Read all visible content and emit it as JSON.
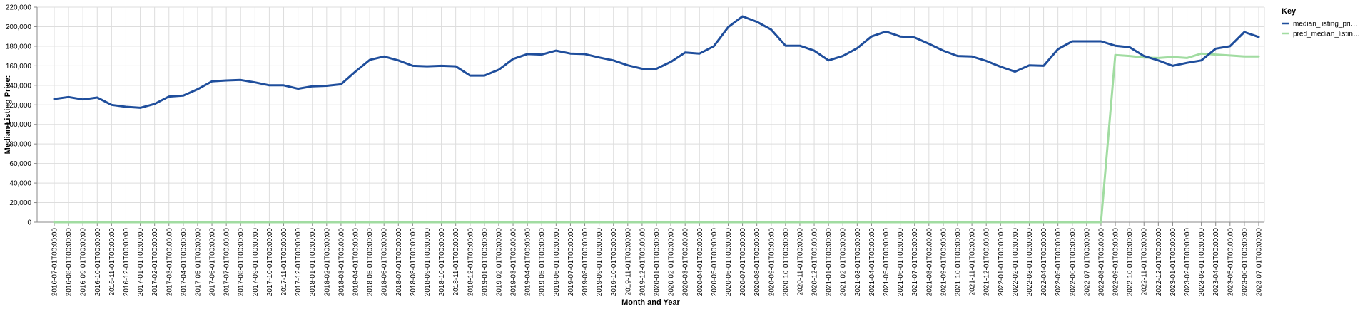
{
  "chart_data": {
    "type": "line",
    "xlabel": "Month and Year",
    "ylabel": "Median Listing Price:",
    "ylim": [
      0,
      220000
    ],
    "yticks": [
      "0",
      "20,000",
      "40,000",
      "60,000",
      "80,000",
      "100,000",
      "120,000",
      "140,000",
      "160,000",
      "180,000",
      "200,000",
      "220,000"
    ],
    "grid": true,
    "legend": {
      "title": "Key",
      "placement": "top-right"
    },
    "x": [
      "2016-07-01T00:00:00",
      "2016-08-01T00:00:00",
      "2016-09-01T00:00:00",
      "2016-10-01T00:00:00",
      "2016-11-01T00:00:00",
      "2016-12-01T00:00:00",
      "2017-01-01T00:00:00",
      "2017-02-01T00:00:00",
      "2017-03-01T00:00:00",
      "2017-04-01T00:00:00",
      "2017-05-01T00:00:00",
      "2017-06-01T00:00:00",
      "2017-07-01T00:00:00",
      "2017-08-01T00:00:00",
      "2017-09-01T00:00:00",
      "2017-10-01T00:00:00",
      "2017-11-01T00:00:00",
      "2017-12-01T00:00:00",
      "2018-01-01T00:00:00",
      "2018-02-01T00:00:00",
      "2018-03-01T00:00:00",
      "2018-04-01T00:00:00",
      "2018-05-01T00:00:00",
      "2018-06-01T00:00:00",
      "2018-07-01T00:00:00",
      "2018-08-01T00:00:00",
      "2018-09-01T00:00:00",
      "2018-10-01T00:00:00",
      "2018-11-01T00:00:00",
      "2018-12-01T00:00:00",
      "2019-01-01T00:00:00",
      "2019-02-01T00:00:00",
      "2019-03-01T00:00:00",
      "2019-04-01T00:00:00",
      "2019-05-01T00:00:00",
      "2019-06-01T00:00:00",
      "2019-07-01T00:00:00",
      "2019-08-01T00:00:00",
      "2019-09-01T00:00:00",
      "2019-10-01T00:00:00",
      "2019-11-01T00:00:00",
      "2019-12-01T00:00:00",
      "2020-01-01T00:00:00",
      "2020-02-01T00:00:00",
      "2020-03-01T00:00:00",
      "2020-04-01T00:00:00",
      "2020-05-01T00:00:00",
      "2020-06-01T00:00:00",
      "2020-07-01T00:00:00",
      "2020-08-01T00:00:00",
      "2020-09-01T00:00:00",
      "2020-10-01T00:00:00",
      "2020-11-01T00:00:00",
      "2020-12-01T00:00:00",
      "2021-01-01T00:00:00",
      "2021-02-01T00:00:00",
      "2021-03-01T00:00:00",
      "2021-04-01T00:00:00",
      "2021-05-01T00:00:00",
      "2021-06-01T00:00:00",
      "2021-07-01T00:00:00",
      "2021-08-01T00:00:00",
      "2021-09-01T00:00:00",
      "2021-10-01T00:00:00",
      "2021-11-01T00:00:00",
      "2021-12-01T00:00:00",
      "2022-01-01T00:00:00",
      "2022-02-01T00:00:00",
      "2022-03-01T00:00:00",
      "2022-04-01T00:00:00",
      "2022-05-01T00:00:00",
      "2022-06-01T00:00:00",
      "2022-07-01T00:00:00",
      "2022-08-01T00:00:00",
      "2022-09-01T00:00:00",
      "2022-10-01T00:00:00",
      "2022-11-01T00:00:00",
      "2022-12-01T00:00:00",
      "2023-01-01T00:00:00",
      "2023-02-01T00:00:00",
      "2023-03-01T00:00:00",
      "2023-04-01T00:00:00",
      "2023-05-01T00:00:00",
      "2023-06-01T00:00:00",
      "2023-07-01T00:00:00"
    ],
    "series": [
      {
        "name": "median_listing_pri…",
        "color": "#1f4e9c",
        "values": [
          126000,
          128000,
          125500,
          127500,
          120000,
          118000,
          117000,
          121000,
          128500,
          129500,
          136000,
          144000,
          145000,
          145500,
          143000,
          140000,
          140000,
          136500,
          139000,
          139500,
          141000,
          154000,
          166000,
          169500,
          165500,
          160000,
          159500,
          160000,
          159500,
          150000,
          150000,
          156000,
          167000,
          172000,
          171500,
          175500,
          172500,
          172000,
          168500,
          165500,
          160500,
          157000,
          157000,
          164000,
          173500,
          172500,
          180000,
          199500,
          210500,
          205000,
          197000,
          180500,
          180500,
          175500,
          165500,
          170000,
          178000,
          190000,
          195000,
          190000,
          189000,
          182500,
          175500,
          170000,
          169500,
          165000,
          159000,
          154000,
          160500,
          160000,
          177000,
          185000,
          185000,
          185000,
          180500,
          179000,
          170000,
          165500,
          160000,
          163000,
          165500,
          177500,
          180000,
          194500,
          189500
        ]
      },
      {
        "name": "pred_median_listin…",
        "color": "#a1dca1",
        "values": [
          0,
          0,
          0,
          0,
          0,
          0,
          0,
          0,
          0,
          0,
          0,
          0,
          0,
          0,
          0,
          0,
          0,
          0,
          0,
          0,
          0,
          0,
          0,
          0,
          0,
          0,
          0,
          0,
          0,
          0,
          0,
          0,
          0,
          0,
          0,
          0,
          0,
          0,
          0,
          0,
          0,
          0,
          0,
          0,
          0,
          0,
          0,
          0,
          0,
          0,
          0,
          0,
          0,
          0,
          0,
          0,
          0,
          0,
          0,
          0,
          0,
          0,
          0,
          0,
          0,
          0,
          0,
          0,
          0,
          0,
          0,
          0,
          0,
          0,
          171000,
          170000,
          168500,
          168000,
          169000,
          168000,
          172500,
          171500,
          170500,
          169500,
          169500
        ]
      }
    ]
  }
}
